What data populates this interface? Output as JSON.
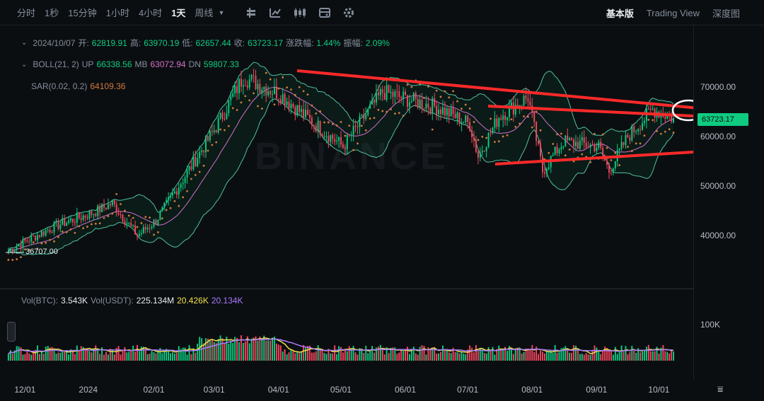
{
  "toolbar": {
    "intervals": [
      "分时",
      "1秒",
      "15分钟",
      "1小时",
      "4小时",
      "1天",
      "周线"
    ],
    "active_interval": "1天",
    "views": [
      "基本版",
      "Trading View",
      "深度图"
    ],
    "active_view": "基本版",
    "icons": [
      "candle-type-icon",
      "indicator-icon",
      "candles-icon",
      "template-icon",
      "settings-icon"
    ]
  },
  "ohlc": {
    "date": "2024/10/07",
    "open_label": "开:",
    "open": "62819.91",
    "high_label": "高:",
    "high": "63970.19",
    "low_label": "低:",
    "low": "62657.44",
    "close_label": "收:",
    "close": "63723.17",
    "change_label": "涨跌幅:",
    "change": "1.44%",
    "amplitude_label": "振幅:",
    "amplitude": "2.09%"
  },
  "boll": {
    "label": "BOLL(21, 2)",
    "up_label": "UP",
    "up": "66338.56",
    "mb_label": "MB",
    "mb": "63072.94",
    "dn_label": "DN",
    "dn": "59807.33"
  },
  "sar": {
    "label": "SAR(0.02, 0.2)",
    "value": "64109.36"
  },
  "volume": {
    "btc_label": "Vol(BTC):",
    "btc": "3.543K",
    "usdt_label": "Vol(USDT):",
    "usdt": "225.134M",
    "ma1": "20.426K",
    "ma2": "20.134K",
    "ytick": "100K"
  },
  "price_axis": [
    "70000.00",
    "60000.00",
    "50000.00",
    "40000.00"
  ],
  "current_price_tag": "63723.17",
  "low_marker": "36707.00",
  "x_axis": [
    "12/01",
    "2024",
    "02/01",
    "03/01",
    "04/01",
    "05/01",
    "06/01",
    "07/01",
    "08/01",
    "09/01",
    "10/01"
  ],
  "watermark": "BINANCE",
  "colors": {
    "up": "#0ecb81",
    "down": "#f6465d",
    "boll_mb": "#d66fc9",
    "sar": "#cf7b3a",
    "annotation": "#ff2a2a",
    "vol_ma1": "#f0e14a",
    "vol_ma2": "#a77bff"
  },
  "chart_data": {
    "type": "candlestick",
    "symbol_interval": "1D",
    "ylim": [
      35000,
      74000
    ],
    "x": [
      "2023-11-22",
      "2023-12-01",
      "2023-12-15",
      "2024-01-01",
      "2024-01-11",
      "2024-01-23",
      "2024-02-01",
      "2024-02-15",
      "2024-03-01",
      "2024-03-14",
      "2024-04-01",
      "2024-04-13",
      "2024-05-01",
      "2024-05-20",
      "2024-06-01",
      "2024-06-15",
      "2024-07-01",
      "2024-07-05",
      "2024-07-15",
      "2024-07-29",
      "2024-08-05",
      "2024-08-15",
      "2024-09-01",
      "2024-09-06",
      "2024-09-15",
      "2024-09-27",
      "2024-10-07"
    ],
    "close": [
      37000,
      39000,
      42000,
      44500,
      46500,
      40000,
      43000,
      52000,
      62000,
      72000,
      68500,
      64000,
      58000,
      69000,
      67500,
      66000,
      62500,
      56000,
      64000,
      68000,
      53000,
      59000,
      58000,
      53000,
      60000,
      65500,
      63723
    ],
    "annotation_lines": "three red trend arrows pointing right; white circle at latest price"
  }
}
